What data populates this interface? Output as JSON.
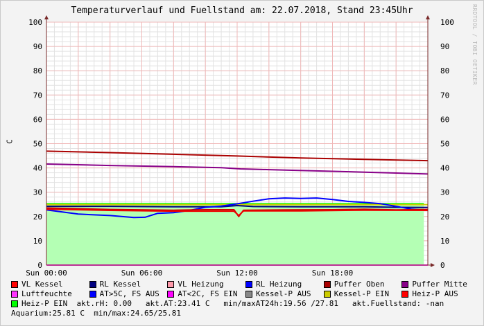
{
  "title": "Temperaturverlauf und Fuellstand am: 22.07.2018, Stand 23:45Uhr",
  "watermark": "RRDTOOL / TOBI OETIKER",
  "chart_data": {
    "type": "line",
    "title": "Temperaturverlauf und Fuellstand am: 22.07.2018, Stand 23:45Uhr",
    "ylabel": "C",
    "xlabel": "",
    "ylim": [
      0,
      100
    ],
    "xlim": [
      0,
      24
    ],
    "grid": true,
    "legend_position": "bottom",
    "y_ticks": [
      0,
      10,
      20,
      30,
      40,
      50,
      60,
      70,
      80,
      90,
      100
    ],
    "x_ticks": [
      {
        "x": 0,
        "label": "Sun 00:00"
      },
      {
        "x": 6,
        "label": "Sun 06:00"
      },
      {
        "x": 12,
        "label": "Sun 12:00"
      },
      {
        "x": 18,
        "label": "Sun 18:00"
      }
    ],
    "series": [
      {
        "name": "Heiz-P EIN",
        "color": "#00ff00",
        "kind": "area",
        "points": [
          [
            0,
            25.1
          ],
          [
            23.75,
            25.1
          ]
        ]
      },
      {
        "name": "Puffer Oben",
        "color": "#aa0000",
        "kind": "line",
        "points": [
          [
            0,
            46.9
          ],
          [
            4,
            46.3
          ],
          [
            8,
            45.6
          ],
          [
            12,
            44.9
          ],
          [
            16,
            44.1
          ],
          [
            20,
            43.5
          ],
          [
            24,
            43.0
          ]
        ]
      },
      {
        "name": "Puffer Mitte",
        "color": "#880088",
        "kind": "line",
        "points": [
          [
            0,
            41.6
          ],
          [
            4,
            41.0
          ],
          [
            8,
            40.5
          ],
          [
            11,
            40.1
          ],
          [
            12.2,
            39.6
          ],
          [
            14,
            39.3
          ],
          [
            18,
            38.6
          ],
          [
            22,
            37.9
          ],
          [
            24,
            37.5
          ]
        ]
      },
      {
        "name": "Kessel-P EIN",
        "color": "#cccc00",
        "kind": "line",
        "points": [
          [
            0,
            24.9
          ],
          [
            24,
            24.9
          ]
        ]
      },
      {
        "name": "RL Kessel",
        "color": "#000080",
        "kind": "line",
        "points": [
          [
            0,
            24.2
          ],
          [
            4,
            24.2
          ],
          [
            8,
            24.0
          ],
          [
            11,
            24.0
          ],
          [
            12,
            24.5
          ],
          [
            13,
            24.1
          ],
          [
            16,
            24.0
          ],
          [
            20,
            24.0
          ],
          [
            22,
            23.8
          ],
          [
            24,
            23.7
          ]
        ]
      },
      {
        "name": "RL Heizung",
        "color": "#0000ff",
        "kind": "line",
        "points": [
          [
            0,
            22.7
          ],
          [
            2,
            21.0
          ],
          [
            4,
            20.4
          ],
          [
            5.5,
            19.6
          ],
          [
            6.2,
            19.7
          ],
          [
            7,
            21.3
          ],
          [
            8,
            21.6
          ],
          [
            9,
            22.5
          ],
          [
            10,
            23.8
          ],
          [
            11,
            24.3
          ],
          [
            12,
            25.2
          ],
          [
            13,
            26.3
          ],
          [
            14,
            27.3
          ],
          [
            15,
            27.6
          ],
          [
            16,
            27.4
          ],
          [
            17,
            27.6
          ],
          [
            18,
            27.0
          ],
          [
            19,
            26.2
          ],
          [
            20,
            25.8
          ],
          [
            21,
            25.3
          ],
          [
            22,
            24.2
          ],
          [
            23,
            23.0
          ],
          [
            24,
            22.6
          ]
        ]
      },
      {
        "name": "VL Kessel",
        "color": "#cc0000",
        "kind": "line",
        "points": [
          [
            0,
            23.5
          ],
          [
            4,
            22.9
          ],
          [
            8,
            22.6
          ],
          [
            10,
            22.8
          ],
          [
            11.8,
            22.8
          ],
          [
            12.1,
            20.0
          ],
          [
            12.4,
            22.6
          ],
          [
            15,
            22.7
          ],
          [
            18,
            22.8
          ],
          [
            20,
            23.0
          ],
          [
            22,
            22.7
          ],
          [
            24,
            22.9
          ]
        ]
      },
      {
        "name": "Heiz-P AUS",
        "color": "#ee0000",
        "kind": "line",
        "points": [
          [
            0,
            23.0
          ],
          [
            4,
            22.5
          ],
          [
            8,
            22.2
          ],
          [
            11.8,
            22.2
          ],
          [
            12.1,
            20.4
          ],
          [
            12.4,
            22.3
          ],
          [
            16,
            22.3
          ],
          [
            20,
            22.6
          ],
          [
            24,
            22.5
          ]
        ]
      },
      {
        "name": "VL Heizung",
        "color": "#ff99aa",
        "kind": "line",
        "points": []
      },
      {
        "name": "Luftfeuchte",
        "color": "#ff33ff",
        "kind": "line",
        "points": [
          [
            0,
            0.0
          ],
          [
            24,
            0.0
          ]
        ]
      },
      {
        "name": "AT>5C, FS AUS",
        "color": "#0000ff",
        "kind": "line",
        "points": []
      },
      {
        "name": "AT<2C, FS EIN",
        "color": "#ff00ff",
        "kind": "line",
        "points": []
      },
      {
        "name": "Kessel-P AUS",
        "color": "#888888",
        "kind": "line",
        "points": []
      }
    ]
  },
  "legend": {
    "row1": [
      {
        "label": "VL Kessel",
        "color": "#ff0000"
      },
      {
        "label": "RL Kessel",
        "color": "#000080"
      },
      {
        "label": "VL Heizung",
        "color": "#ff99aa"
      },
      {
        "label": "RL Heizung",
        "color": "#0000ff"
      },
      {
        "label": "Puffer Oben",
        "color": "#aa0000"
      },
      {
        "label": "Puffer Mitte",
        "color": "#880088"
      }
    ],
    "row2": [
      {
        "label": "Luftfeuchte",
        "color": "#ff33ff"
      },
      {
        "label": "AT>5C, FS AUS",
        "color": "#0000ff"
      },
      {
        "label": "AT<2C, FS EIN",
        "color": "#ff00ff"
      },
      {
        "label": "Kessel-P AUS",
        "color": "#888888"
      },
      {
        "label": "Kessel-P EIN",
        "color": "#cccc00"
      },
      {
        "label": "Heiz-P AUS",
        "color": "#ff0000"
      }
    ],
    "row3_item": {
      "label": "Heiz-P EIN",
      "color": "#00ff00"
    },
    "row3_text": "  akt.rH: 0.00   akt.AT:23.41 C   min/maxAT24h:19.56 /27.81   akt.Fuellstand: -nan",
    "row4_text": "Aquarium:25.81 C  min/max:24.65/25.81"
  }
}
